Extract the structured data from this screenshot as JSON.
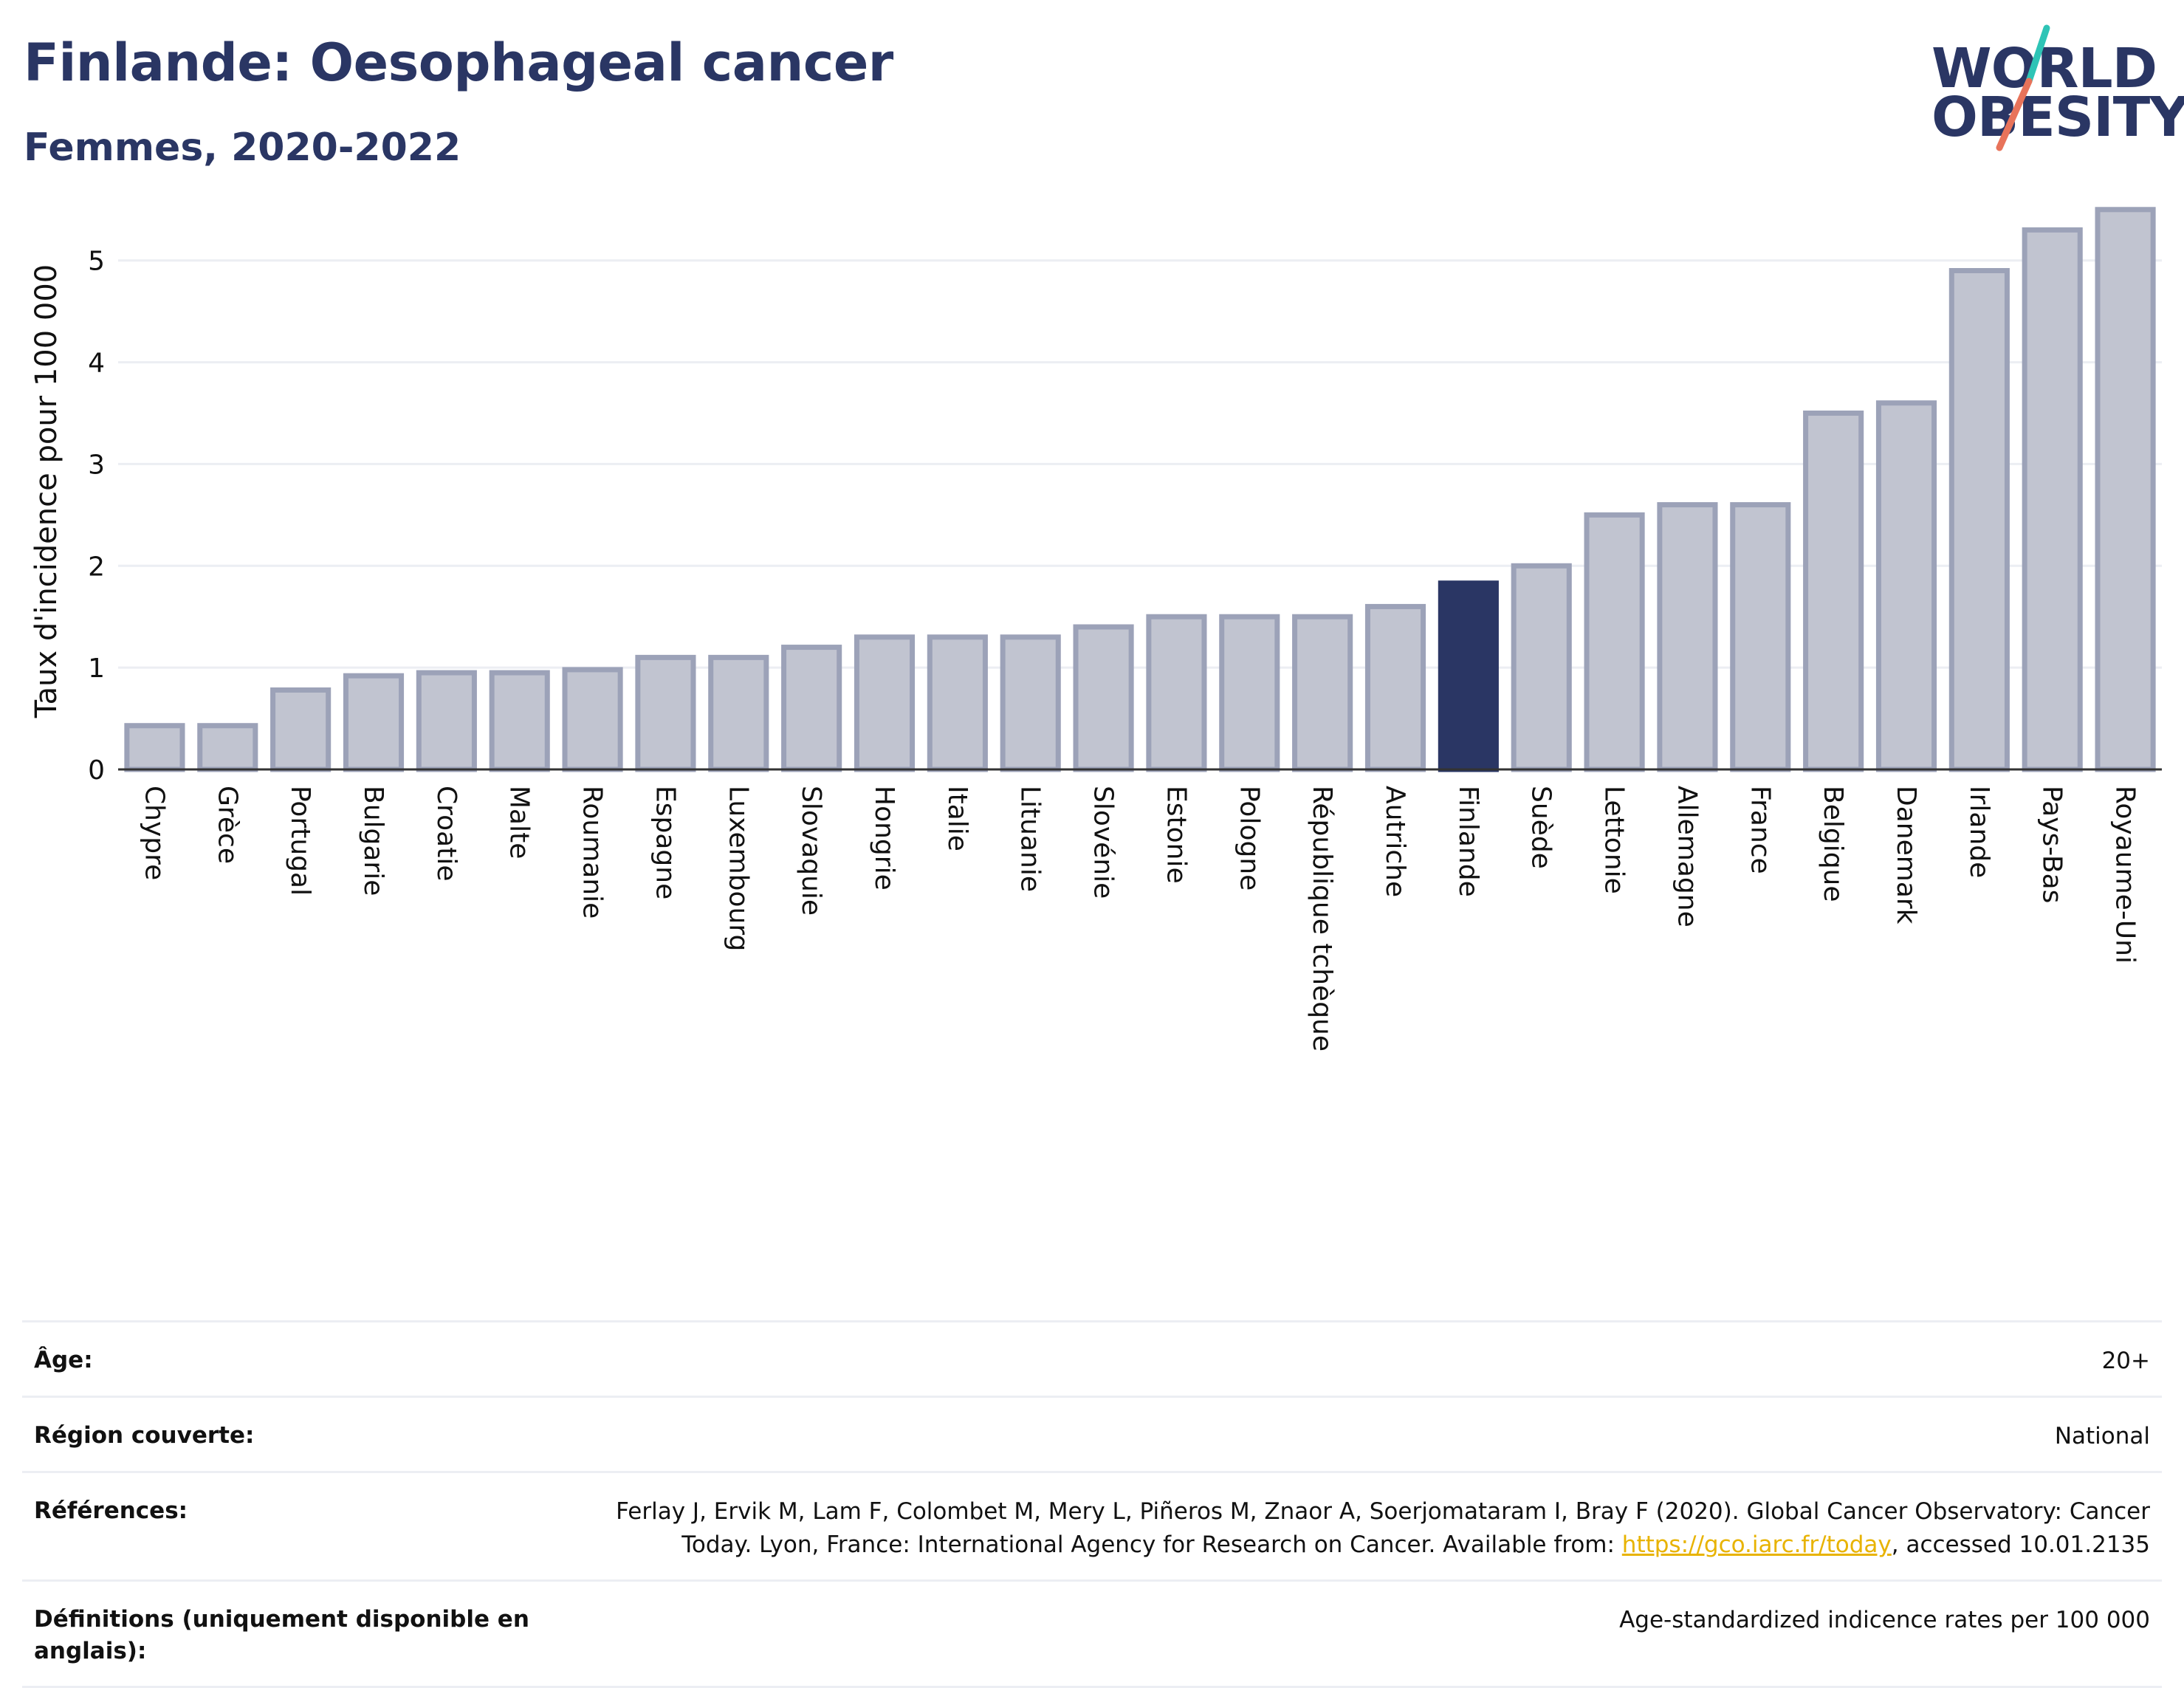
{
  "header": {
    "title": "Finlande: Oesophageal cancer",
    "subtitle": "Femmes, 2020-2022"
  },
  "logo": {
    "line1": "WORLD",
    "line2": "OBESITY",
    "colors": {
      "slash_teal": "#2ec4b6",
      "slash_coral": "#e8735a"
    }
  },
  "chart_data": {
    "type": "bar",
    "categories": [
      "Chypre",
      "Grèce",
      "Portugal",
      "Bulgarie",
      "Croatie",
      "Malte",
      "Roumanie",
      "Espagne",
      "Luxembourg",
      "Slovaquie",
      "Hongrie",
      "Italie",
      "Lituanie",
      "Slovénie",
      "Estonie",
      "Pologne",
      "République tchèque",
      "Autriche",
      "Finlande",
      "Suède",
      "Lettonie",
      "Allemagne",
      "France",
      "Belgique",
      "Danemark",
      "Irlande",
      "Pays-Bas",
      "Royaume-Uni"
    ],
    "values": [
      0.43,
      0.43,
      0.78,
      0.92,
      0.95,
      0.95,
      0.98,
      1.1,
      1.1,
      1.2,
      1.3,
      1.3,
      1.3,
      1.4,
      1.5,
      1.5,
      1.5,
      1.6,
      1.83,
      2.0,
      2.5,
      2.6,
      2.6,
      3.5,
      3.6,
      4.9,
      5.3,
      5.5
    ],
    "highlight": "Finlande",
    "ylabel": "Taux d'incidence pour 100 000",
    "xlabel": "",
    "ylim": [
      0,
      5.6
    ],
    "yticks": [
      0,
      1,
      2,
      3,
      4,
      5
    ],
    "grid": true,
    "colors": {
      "bar_fill": "#c1c4d0",
      "bar_stroke": "#9ca2b8",
      "highlight": "#2a3664",
      "grid": "#eceef3",
      "axis": "#333333"
    }
  },
  "info": {
    "rows": [
      {
        "key": "Âge:",
        "value": "20+"
      },
      {
        "key": "Région couverte:",
        "value": "National"
      },
      {
        "key": "Références:",
        "value_before": "Ferlay J, Ervik M, Lam F, Colombet M, Mery L, Piñeros M, Znaor A, Soerjomataram I, Bray F (2020). Global Cancer Observatory: Cancer Today. Lyon, France: International Agency for Research on Cancer. Available from: ",
        "link": "https://gco.iarc.fr/today",
        "value_after": ", accessed 10.01.2135"
      },
      {
        "key": "Définitions (uniquement disponible en anglais):",
        "value": "Age-standardized indicence rates per 100 000"
      }
    ]
  }
}
